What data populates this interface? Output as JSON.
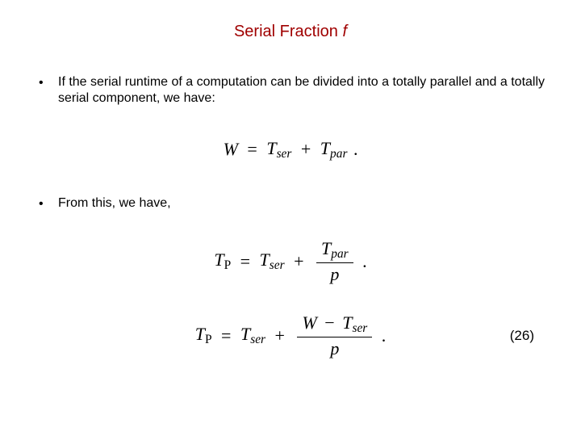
{
  "colors": {
    "title": "#a00000",
    "text": "#000000",
    "background": "#ffffff"
  },
  "fonts": {
    "body_family": "Arial",
    "math_family": "Georgia",
    "title_size_pt": 20,
    "body_size_pt": 16,
    "math_size_pt": 22
  },
  "title": {
    "main": "Serial Fraction ",
    "var": "f"
  },
  "bullets": [
    {
      "dot": "•",
      "text": "If the serial runtime of a computation can be divided into a totally parallel and a totally serial component, we have:"
    },
    {
      "dot": "•",
      "text": "From this, we have,"
    }
  ],
  "equations": {
    "eq1": {
      "W": "W",
      "eq": "=",
      "Tser": "T",
      "Tser_sub": "ser",
      "plus": "+",
      "Tpar": "T",
      "Tpar_sub": "par",
      "dot": "."
    },
    "eq2": {
      "TP": "T",
      "TP_sub": "P",
      "eq": "=",
      "Tser": "T",
      "Tser_sub": "ser",
      "plus": "+",
      "num_T": "T",
      "num_sub": "par",
      "den": "p",
      "dot": "."
    },
    "eq3": {
      "TP": "T",
      "TP_sub": "P",
      "eq": "=",
      "Tser": "T",
      "Tser_sub": "ser",
      "plus": "+",
      "num_W": "W",
      "num_minus": "−",
      "num_T": "T",
      "num_sub": "ser",
      "den": "p",
      "dot": "."
    },
    "eq3_number": "(26)"
  }
}
